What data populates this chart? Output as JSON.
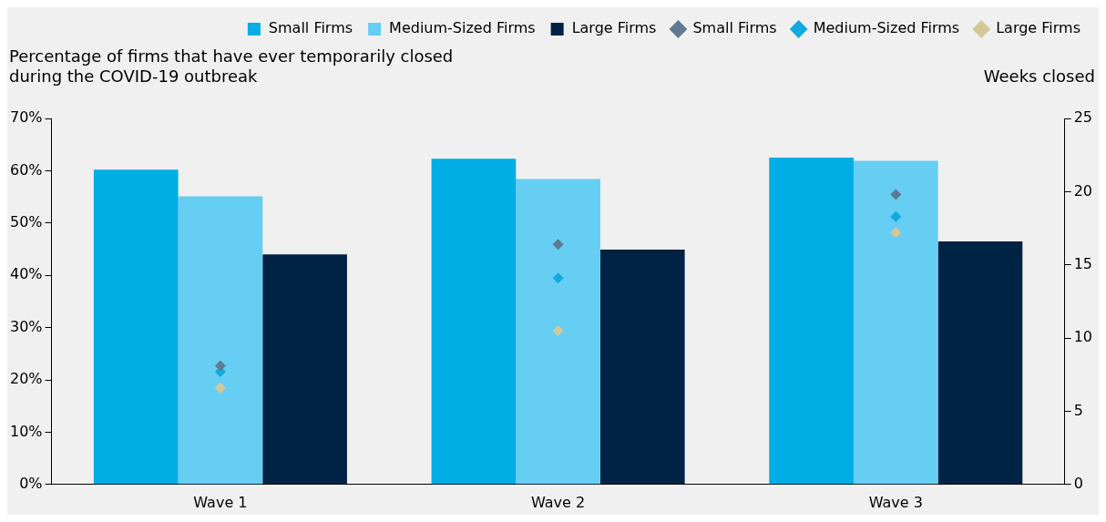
{
  "chart_data": {
    "type": "bar",
    "ylabel": "Percentage of firms that have ever temporarily closed during the COVID-19 outbreak",
    "y2label": "Weeks closed",
    "categories": [
      "Wave 1",
      "Wave 2",
      "Wave 3"
    ],
    "series": [
      {
        "name": "Small Firms",
        "color": "#00ade4",
        "values": [
          60.2,
          62.3,
          62.5
        ]
      },
      {
        "name": "Medium-Sized Firms",
        "color": "#66cdf3",
        "values": [
          55.1,
          58.4,
          61.9
        ]
      },
      {
        "name": "Large Firms",
        "color": "#002244",
        "values": [
          44.0,
          44.9,
          46.5
        ]
      },
      {
        "name": "Small Firms",
        "type": "scatter",
        "axis": "y2",
        "color": "#5f7a91",
        "x": [
          "Wave 1",
          "Wave 2",
          "Wave 3"
        ],
        "values": [
          8.1,
          16.4,
          19.8
        ]
      },
      {
        "name": "Medium-Sized Firms",
        "type": "scatter",
        "axis": "y2",
        "color": "#10a9e0",
        "x": [
          "Wave 1",
          "Wave 2",
          "Wave 3"
        ],
        "values": [
          7.7,
          14.1,
          18.3
        ]
      },
      {
        "name": "Large Firms",
        "type": "scatter",
        "axis": "y2",
        "color": "#d4c896",
        "x": [
          "Wave 1",
          "Wave 2",
          "Wave 3"
        ],
        "values": [
          6.6,
          10.5,
          17.2
        ]
      }
    ],
    "marker": "diamond",
    "legend": "top right",
    "ylim": [
      0,
      70
    ],
    "yticks": [
      {
        "value": 0,
        "label": "0%"
      },
      {
        "value": 10,
        "label": "10%"
      },
      {
        "value": 20,
        "label": "20%"
      },
      {
        "value": 30,
        "label": "30%"
      },
      {
        "value": 40,
        "label": "40%"
      },
      {
        "value": 50,
        "label": "50%"
      },
      {
        "value": 60,
        "label": "60%"
      },
      {
        "value": 70,
        "label": "70%"
      }
    ],
    "y2lim": [
      0,
      25
    ],
    "y2ticks": [
      0,
      5,
      10,
      15,
      20,
      25
    ]
  }
}
